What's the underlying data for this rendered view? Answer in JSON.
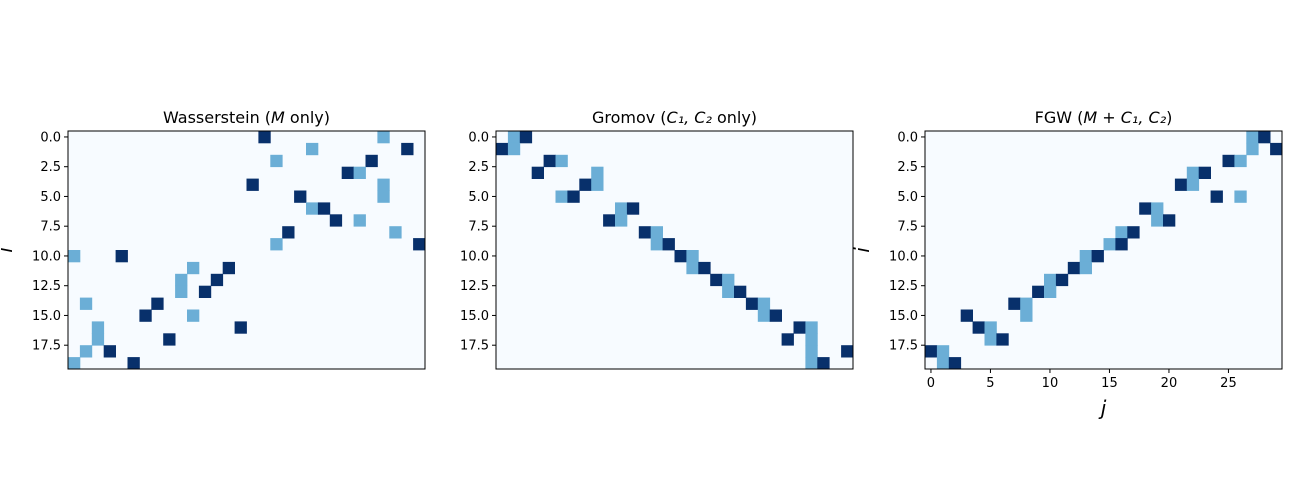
{
  "chart_data": [
    {
      "type": "heatmap",
      "title": "Wasserstein (",
      "title_math": "M",
      "title_tail": " only)",
      "rows": 20,
      "cols": 30,
      "ylabel": "i",
      "xlabel": "",
      "show_xticks": false,
      "yticks": [
        "0.0",
        "2.5",
        "5.0",
        "7.5",
        "10.0",
        "12.5",
        "15.0",
        "17.5"
      ],
      "ytick_values": [
        0,
        2.5,
        5,
        7.5,
        10,
        12.5,
        15,
        17.5
      ],
      "colors": {
        "background": "#f7fbff",
        "light": "#6baed6",
        "dark": "#08306b"
      },
      "cells": [
        [
          0,
          16,
          2
        ],
        [
          0,
          26,
          1
        ],
        [
          1,
          20,
          1
        ],
        [
          1,
          28,
          2
        ],
        [
          2,
          17,
          1
        ],
        [
          2,
          25,
          2
        ],
        [
          3,
          23,
          2
        ],
        [
          3,
          24,
          1
        ],
        [
          4,
          15,
          2
        ],
        [
          4,
          26,
          1
        ],
        [
          5,
          19,
          2
        ],
        [
          5,
          26,
          1
        ],
        [
          6,
          20,
          1
        ],
        [
          6,
          21,
          2
        ],
        [
          7,
          22,
          2
        ],
        [
          7,
          24,
          1
        ],
        [
          8,
          18,
          2
        ],
        [
          8,
          27,
          1
        ],
        [
          9,
          17,
          1
        ],
        [
          9,
          29,
          2
        ],
        [
          10,
          0,
          1
        ],
        [
          10,
          4,
          2
        ],
        [
          11,
          10,
          1
        ],
        [
          11,
          13,
          2
        ],
        [
          12,
          9,
          1
        ],
        [
          12,
          12,
          2
        ],
        [
          13,
          9,
          1
        ],
        [
          13,
          11,
          2
        ],
        [
          14,
          1,
          1
        ],
        [
          14,
          7,
          2
        ],
        [
          15,
          6,
          2
        ],
        [
          15,
          10,
          1
        ],
        [
          16,
          2,
          1
        ],
        [
          16,
          14,
          2
        ],
        [
          17,
          2,
          1
        ],
        [
          17,
          8,
          2
        ],
        [
          18,
          1,
          1
        ],
        [
          18,
          3,
          2
        ],
        [
          19,
          0,
          1
        ],
        [
          19,
          5,
          2
        ]
      ]
    },
    {
      "type": "heatmap",
      "title": "Gromov (",
      "title_math": "C₁, C₂",
      "title_tail": " only)",
      "rows": 20,
      "cols": 30,
      "ylabel": "",
      "xlabel": "",
      "show_xticks": false,
      "yticks": [
        "0.0",
        "2.5",
        "5.0",
        "7.5",
        "10.0",
        "12.5",
        "15.0",
        "17.5"
      ],
      "ytick_values": [
        0,
        2.5,
        5,
        7.5,
        10,
        12.5,
        15,
        17.5
      ],
      "colors": {
        "background": "#f7fbff",
        "light": "#6baed6",
        "dark": "#08306b"
      },
      "cells": [
        [
          0,
          1,
          1
        ],
        [
          0,
          2,
          2
        ],
        [
          1,
          0,
          2
        ],
        [
          1,
          1,
          1
        ],
        [
          2,
          4,
          2
        ],
        [
          2,
          5,
          1
        ],
        [
          3,
          3,
          2
        ],
        [
          3,
          8,
          1
        ],
        [
          4,
          7,
          2
        ],
        [
          4,
          8,
          1
        ],
        [
          5,
          5,
          1
        ],
        [
          5,
          6,
          2
        ],
        [
          6,
          10,
          1
        ],
        [
          6,
          11,
          2
        ],
        [
          7,
          9,
          2
        ],
        [
          7,
          10,
          1
        ],
        [
          8,
          12,
          2
        ],
        [
          8,
          13,
          1
        ],
        [
          9,
          13,
          1
        ],
        [
          9,
          14,
          2
        ],
        [
          10,
          15,
          2
        ],
        [
          10,
          16,
          1
        ],
        [
          11,
          16,
          1
        ],
        [
          11,
          17,
          2
        ],
        [
          12,
          18,
          2
        ],
        [
          12,
          19,
          1
        ],
        [
          13,
          19,
          1
        ],
        [
          13,
          20,
          2
        ],
        [
          14,
          21,
          2
        ],
        [
          14,
          22,
          1
        ],
        [
          15,
          22,
          1
        ],
        [
          15,
          23,
          2
        ],
        [
          16,
          25,
          2
        ],
        [
          16,
          26,
          1
        ],
        [
          17,
          24,
          2
        ],
        [
          17,
          26,
          1
        ],
        [
          18,
          26,
          1
        ],
        [
          18,
          29,
          2
        ],
        [
          19,
          26,
          1
        ],
        [
          19,
          27,
          2
        ]
      ]
    },
    {
      "type": "heatmap",
      "title": "FGW  (",
      "title_math": "M + C₁, C₂",
      "title_tail": ")",
      "rows": 20,
      "cols": 30,
      "ylabel": "i",
      "xlabel": "j",
      "show_xticks": true,
      "xticks": [
        "0",
        "5",
        "10",
        "15",
        "20",
        "25"
      ],
      "xtick_values": [
        0,
        5,
        10,
        15,
        20,
        25
      ],
      "yticks": [
        "0.0",
        "2.5",
        "5.0",
        "7.5",
        "10.0",
        "12.5",
        "15.0",
        "17.5"
      ],
      "ytick_values": [
        0,
        2.5,
        5,
        7.5,
        10,
        12.5,
        15,
        17.5
      ],
      "colors": {
        "background": "#f7fbff",
        "light": "#6baed6",
        "dark": "#08306b"
      },
      "cells": [
        [
          0,
          27,
          1
        ],
        [
          0,
          28,
          2
        ],
        [
          1,
          27,
          1
        ],
        [
          1,
          29,
          2
        ],
        [
          2,
          25,
          2
        ],
        [
          2,
          26,
          1
        ],
        [
          3,
          22,
          1
        ],
        [
          3,
          23,
          2
        ],
        [
          4,
          21,
          2
        ],
        [
          4,
          22,
          1
        ],
        [
          5,
          24,
          2
        ],
        [
          5,
          26,
          1
        ],
        [
          6,
          18,
          2
        ],
        [
          6,
          19,
          1
        ],
        [
          7,
          19,
          1
        ],
        [
          7,
          20,
          2
        ],
        [
          8,
          16,
          1
        ],
        [
          8,
          17,
          2
        ],
        [
          9,
          15,
          1
        ],
        [
          9,
          16,
          2
        ],
        [
          10,
          13,
          1
        ],
        [
          10,
          14,
          2
        ],
        [
          11,
          12,
          2
        ],
        [
          11,
          13,
          1
        ],
        [
          12,
          10,
          1
        ],
        [
          12,
          11,
          2
        ],
        [
          13,
          9,
          2
        ],
        [
          13,
          10,
          1
        ],
        [
          14,
          7,
          2
        ],
        [
          14,
          8,
          1
        ],
        [
          15,
          3,
          2
        ],
        [
          15,
          8,
          1
        ],
        [
          16,
          4,
          2
        ],
        [
          16,
          5,
          1
        ],
        [
          17,
          5,
          1
        ],
        [
          17,
          6,
          2
        ],
        [
          18,
          0,
          2
        ],
        [
          18,
          1,
          1
        ],
        [
          19,
          1,
          1
        ],
        [
          19,
          2,
          2
        ]
      ]
    }
  ]
}
